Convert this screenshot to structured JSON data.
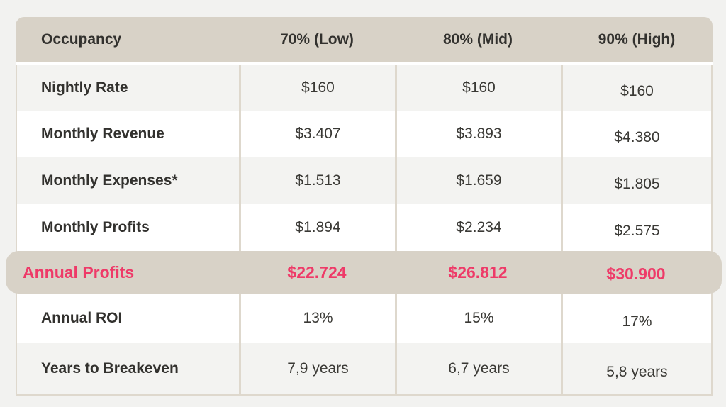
{
  "chart_data": {
    "type": "table",
    "columns": [
      "Occupancy",
      "70% (Low)",
      "80% (Mid)",
      "90% (High)"
    ],
    "rows": [
      [
        "Nightly Rate",
        "$160",
        "$160",
        "$160"
      ],
      [
        "Monthly Revenue",
        "$3.407",
        "$3.893",
        "$4.380"
      ],
      [
        "Monthly Expenses*",
        "$1.513",
        "$1.659",
        "$1.805"
      ],
      [
        "Monthly Profits",
        "$1.894",
        "$2.234",
        "$2.575"
      ],
      [
        "Annual Profits",
        "$22.724",
        "$26.812",
        "$30.900"
      ],
      [
        "Annual ROI",
        "13%",
        "15%",
        "17%"
      ],
      [
        "Years to Breakeven",
        "7,9 years",
        "6,7 years",
        "5,8 years"
      ]
    ],
    "highlighted_row": "Annual Profits",
    "layout": {
      "header_position": "top",
      "grid": "column-dividers-only"
    }
  },
  "table": {
    "header": {
      "label": "Occupancy",
      "columns": [
        "70% (Low)",
        "80% (Mid)",
        "90% (High)"
      ]
    },
    "rows": [
      {
        "label": "Nightly Rate",
        "values": [
          "$160",
          "$160",
          "$160"
        ]
      },
      {
        "label": "Monthly Revenue",
        "values": [
          "$3.407",
          "$3.893",
          "$4.380"
        ]
      },
      {
        "label": "Monthly Expenses*",
        "values": [
          "$1.513",
          "$1.659",
          "$1.805"
        ]
      },
      {
        "label": "Monthly Profits",
        "values": [
          "$1.894",
          "$2.234",
          "$2.575"
        ]
      },
      {
        "label": "Annual Profits",
        "values": [
          "$22.724",
          "$26.812",
          "$30.900"
        ]
      },
      {
        "label": "Annual ROI",
        "values": [
          "13%",
          "15%",
          "17%"
        ]
      },
      {
        "label": "Years to Breakeven",
        "values": [
          "7,9 years",
          "6,7 years",
          "5,8 years"
        ]
      }
    ]
  },
  "colors": {
    "page_bg": "#f2f2f0",
    "header_bg": "#d8d2c7",
    "highlight_band_bg": "#d8d2c7",
    "row_shaded_bg": "#f3f3f1",
    "row_plain_bg": "#ffffff",
    "divider": "#ded8cd",
    "text_dark": "#32312e",
    "accent_pink": "#ee3a68"
  }
}
